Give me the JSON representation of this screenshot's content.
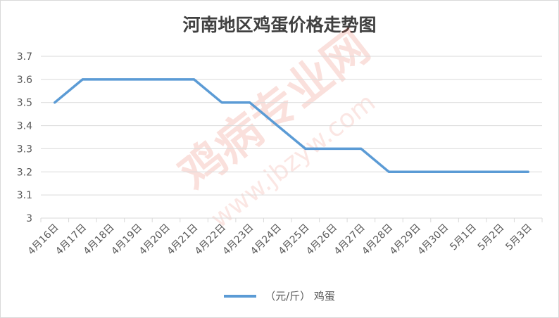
{
  "chart_data": {
    "type": "line",
    "title": "河南地区鸡蛋价格走势图",
    "xlabel": "",
    "ylabel": "",
    "categories": [
      "4月16日",
      "4月17日",
      "4月18日",
      "4月19日",
      "4月20日",
      "4月21日",
      "4月22日",
      "4月23日",
      "4月24日",
      "4月25日",
      "4月26日",
      "4月27日",
      "4月28日",
      "4月29日",
      "4月30日",
      "5月1日",
      "5月2日",
      "5月3日"
    ],
    "series": [
      {
        "name": "（元/斤） 鸡蛋",
        "color": "#5b9bd5",
        "values": [
          3.5,
          3.6,
          3.6,
          3.6,
          3.6,
          3.6,
          3.5,
          3.5,
          3.4,
          3.3,
          3.3,
          3.3,
          3.2,
          3.2,
          3.2,
          3.2,
          3.2,
          3.2
        ]
      }
    ],
    "ylim": [
      3,
      3.7
    ],
    "yticks": [
      "3",
      "3.1",
      "3.2",
      "3.3",
      "3.4",
      "3.5",
      "3.6",
      "3.7"
    ],
    "grid": true,
    "legend_position": "bottom"
  },
  "watermark": {
    "main": "鸡病专业网",
    "sub": "www.jbzyw.com"
  },
  "colors": {
    "line": "#5b9bd5",
    "grid": "#d9d9d9",
    "text": "#595959",
    "watermark": "#e23c28"
  }
}
